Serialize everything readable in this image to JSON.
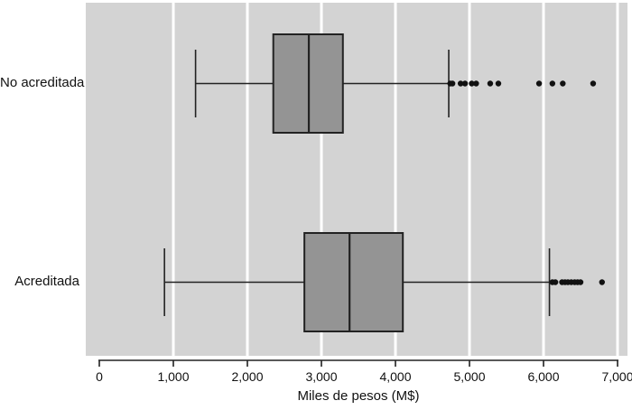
{
  "figure": {
    "background": "#ffffff",
    "panel_background": "#d3d3d3",
    "gridline_color": "#ffffff",
    "box_fill": "#949494",
    "line_color": "#222222",
    "outlier_color": "#111111",
    "tick_label_color": "#111111"
  },
  "chart_data": {
    "type": "boxplot",
    "orientation": "horizontal",
    "title": "",
    "xlabel": "Miles de pesos (M$)",
    "ylabel": "",
    "xlim": [
      0,
      7000
    ],
    "xticks": [
      0,
      1000,
      2000,
      3000,
      4000,
      5000,
      6000,
      7000
    ],
    "xtick_labels": [
      "0",
      "1,000",
      "2,000",
      "3,000",
      "4,000",
      "5,000",
      "6,000",
      "7,000"
    ],
    "grid": "vertical white gridlines every 1,000 on gray panel",
    "legend": "none",
    "categories": [
      "No acreditada",
      "Acreditada"
    ],
    "series": [
      {
        "name": "No acreditada",
        "whisker_low": 1300,
        "q1": 2350,
        "median": 2830,
        "q3": 3290,
        "whisker_high": 4720,
        "outliers": [
          4740,
          4770,
          4880,
          4940,
          5030,
          5090,
          5280,
          5390,
          5940,
          6120,
          6260,
          6670
        ]
      },
      {
        "name": "Acreditada",
        "whisker_low": 880,
        "q1": 2770,
        "median": 3380,
        "q3": 4100,
        "whisker_high": 6080,
        "outliers": [
          6120,
          6160,
          6250,
          6290,
          6330,
          6375,
          6420,
          6460,
          6500,
          6790
        ]
      }
    ]
  }
}
